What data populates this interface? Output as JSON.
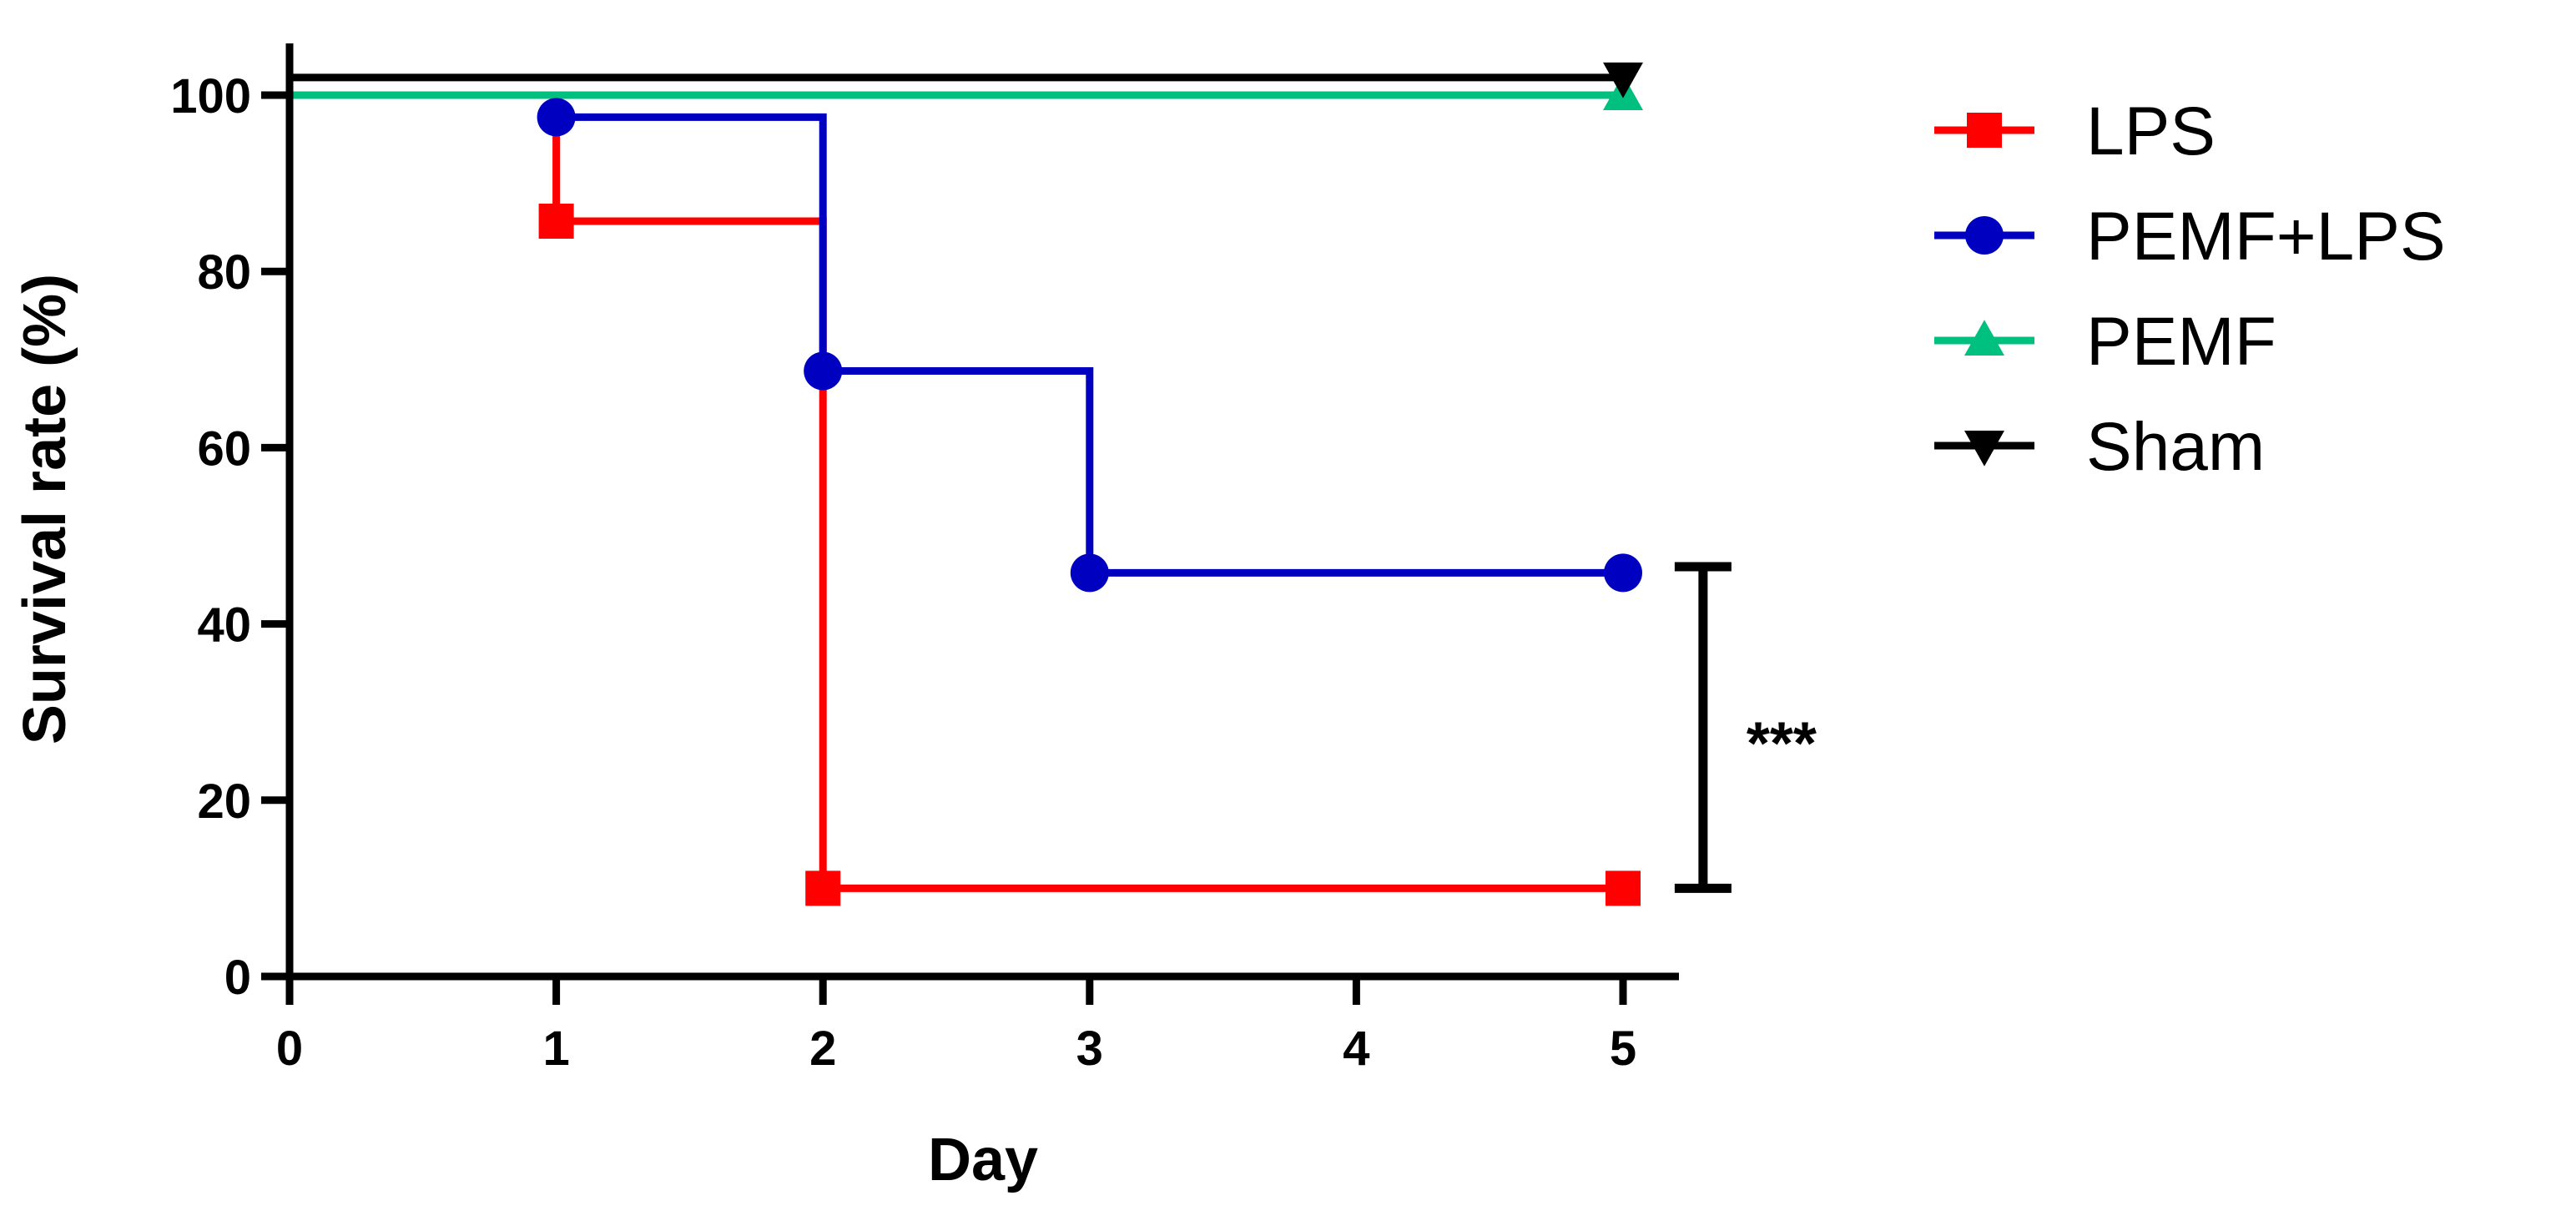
{
  "chart_data": {
    "type": "line",
    "step": true,
    "xlabel": "Day",
    "ylabel": "Survival rate (%)",
    "xlim": [
      0,
      5
    ],
    "ylim": [
      0,
      100
    ],
    "xticks": [
      "0",
      "1",
      "2",
      "3",
      "4",
      "5"
    ],
    "yticks": [
      "0",
      "20",
      "40",
      "60",
      "80",
      "100"
    ],
    "grid": false,
    "legend_position": "right",
    "series": [
      {
        "name": "LPS",
        "color": "#ff0000",
        "marker": "square",
        "x": [
          0,
          1,
          2,
          5
        ],
        "y": [
          100,
          85.7,
          10,
          10
        ],
        "marker_points": [
          [
            1,
            85.7
          ],
          [
            2,
            10
          ],
          [
            5,
            10
          ]
        ]
      },
      {
        "name": "PEMF+LPS",
        "color": "#0000c0",
        "marker": "circle",
        "x": [
          0,
          1,
          2,
          3,
          5
        ],
        "y": [
          100,
          97.5,
          68.7,
          45.8,
          45.8
        ],
        "marker_points": [
          [
            1,
            97.5
          ],
          [
            2,
            68.7
          ],
          [
            3,
            45.8
          ],
          [
            5,
            45.8
          ]
        ]
      },
      {
        "name": "PEMF",
        "color": "#00c080",
        "marker": "triangle-up",
        "x": [
          0,
          5
        ],
        "y": [
          100,
          100
        ],
        "marker_points": [
          [
            5,
            100
          ]
        ]
      },
      {
        "name": "Sham",
        "color": "#000000",
        "marker": "triangle-down",
        "x": [
          0,
          5
        ],
        "y": [
          102,
          102
        ],
        "marker_points": [
          [
            5,
            102
          ]
        ]
      }
    ],
    "annotations": [
      {
        "type": "significance-bracket",
        "label": "***",
        "y_range": [
          10,
          46.5
        ],
        "x": 5.3
      }
    ]
  }
}
